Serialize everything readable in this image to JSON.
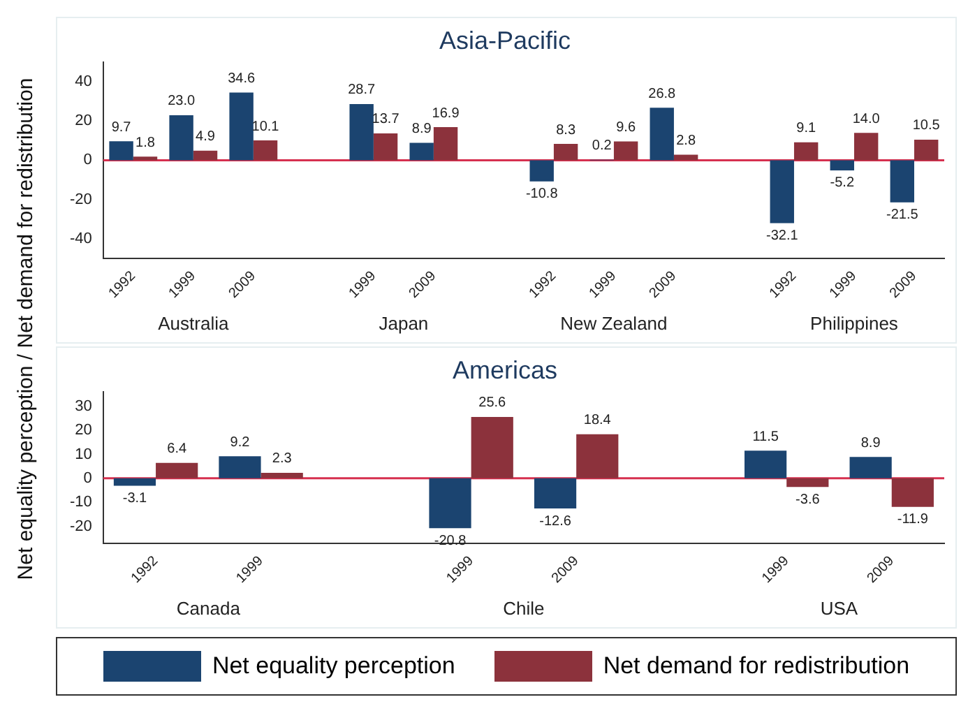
{
  "chart_data": [
    {
      "type": "bar",
      "title": "Asia-Pacific",
      "ylabel": "Net equality perception / Net demand for redistribution",
      "categories": [
        "1992",
        "1999",
        "2009",
        null,
        "1999",
        "2009",
        null,
        "1992",
        "1999",
        "2009",
        null,
        "1992",
        "1999",
        "2009"
      ],
      "series": [
        {
          "name": "Net equality perception",
          "color": "#1b4470",
          "values": [
            9.7,
            23.0,
            34.6,
            null,
            28.7,
            8.9,
            null,
            -10.8,
            0.2,
            26.8,
            null,
            -32.1,
            -5.2,
            -21.5
          ],
          "value_labels": [
            "9.7",
            "23.0",
            "34.6",
            null,
            "28.7",
            "8.9",
            null,
            "-10.8",
            "0.2",
            "26.8",
            null,
            "-32.1",
            "-5.2",
            "-21.5"
          ]
        },
        {
          "name": "Net demand for redistribution",
          "color": "#8c323c",
          "values": [
            1.8,
            4.9,
            10.1,
            null,
            13.7,
            16.9,
            null,
            8.3,
            9.6,
            2.8,
            null,
            9.1,
            14.0,
            10.5
          ],
          "value_labels": [
            "1.8",
            "4.9",
            "10.1",
            null,
            "13.7",
            "16.9",
            null,
            "8.3",
            "9.6",
            "2.8",
            null,
            "9.1",
            "14.0",
            "10.5"
          ]
        }
      ],
      "ylim": [
        -50,
        50
      ],
      "yticks": [
        -40,
        -20,
        0,
        20,
        40
      ],
      "grid": false,
      "legend": "bottom",
      "ref_lines": [
        {
          "axis": "y",
          "value": 0,
          "color": "#d6304f"
        }
      ],
      "annotations": [
        "Australia",
        "Japan",
        "New Zealand",
        "Philippines"
      ]
    },
    {
      "type": "bar",
      "title": "Americas",
      "categories": [
        "1992",
        "1999",
        null,
        "1999",
        "2009",
        null,
        "1999",
        "2009"
      ],
      "series": [
        {
          "color": "#1b4470",
          "values": [
            -3.1,
            9.2,
            null,
            -20.8,
            -12.6,
            null,
            11.5,
            8.9
          ],
          "value_labels": [
            "-3.1",
            "9.2",
            null,
            "-20.8",
            "-12.6",
            null,
            "11.5",
            "8.9"
          ]
        },
        {
          "color": "#8c323c",
          "values": [
            6.4,
            2.3,
            null,
            25.6,
            18.4,
            null,
            -3.6,
            -11.9
          ],
          "value_labels": [
            "6.4",
            "2.3",
            null,
            "25.6",
            "18.4",
            null,
            "-3.6",
            "-11.9"
          ]
        }
      ],
      "ylim": [
        -27,
        36
      ],
      "yticks": [
        -20,
        -10,
        0,
        10,
        20,
        30
      ],
      "grid": false,
      "ref_lines": [
        {
          "axis": "y",
          "value": 0,
          "color": "#d6304f"
        }
      ],
      "annotations": [
        "Canada",
        "Chile",
        "USA"
      ]
    }
  ]
}
